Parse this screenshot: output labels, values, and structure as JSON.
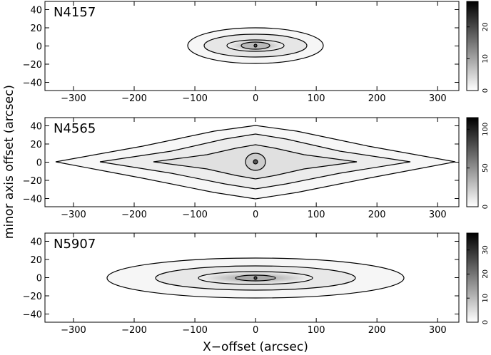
{
  "chart_data": [
    {
      "type": "image",
      "label": "N4157",
      "xlim": [
        -347,
        335
      ],
      "ylim": [
        -49,
        49
      ],
      "xticks": [
        {
          "value": -300,
          "label": "−300"
        },
        {
          "value": -200,
          "label": "−200"
        },
        {
          "value": -100,
          "label": "−100"
        },
        0,
        100,
        200,
        300
      ],
      "yticks": [
        {
          "value": -40,
          "label": "−40"
        },
        {
          "value": -20,
          "label": "−20"
        },
        0,
        20,
        40
      ],
      "colorbar": {
        "lim": [
          0,
          28
        ],
        "ticks": [
          0,
          10,
          20
        ]
      }
    },
    {
      "type": "image",
      "label": "N4565",
      "ylabel": "minor axis offset (arcsec)",
      "xlim": [
        -347,
        335
      ],
      "ylim": [
        -49,
        49
      ],
      "xticks": [
        {
          "value": -300,
          "label": "−300"
        },
        {
          "value": -200,
          "label": "−200"
        },
        {
          "value": -100,
          "label": "−100"
        },
        0,
        100,
        200,
        300
      ],
      "yticks": [
        {
          "value": -40,
          "label": "−40"
        },
        {
          "value": -20,
          "label": "−20"
        },
        0,
        20,
        40
      ],
      "colorbar": {
        "lim": [
          0,
          115
        ],
        "ticks": [
          0,
          50,
          100
        ]
      }
    },
    {
      "type": "image",
      "label": "N5907",
      "xlabel": "X−offset (arcsec)",
      "xlim": [
        -347,
        335
      ],
      "ylim": [
        -49,
        49
      ],
      "xticks": [
        {
          "value": -300,
          "label": "−300"
        },
        {
          "value": -200,
          "label": "−200"
        },
        {
          "value": -100,
          "label": "−100"
        },
        0,
        100,
        200,
        300
      ],
      "yticks": [
        {
          "value": -40,
          "label": "−40"
        },
        {
          "value": -20,
          "label": "−20"
        },
        0,
        20,
        40
      ],
      "colorbar": {
        "lim": [
          0,
          37
        ],
        "ticks": [
          0,
          10,
          20,
          30
        ]
      }
    }
  ]
}
